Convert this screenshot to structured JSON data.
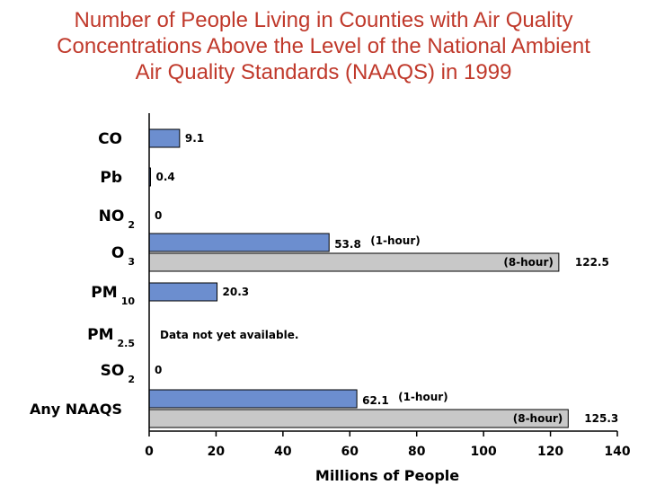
{
  "title_lines": [
    "Number of People Living in Counties with Air Quality",
    "Concentrations Above the Level of the National Ambient",
    "Air Quality Standards (NAAQS) in 1999"
  ],
  "chart_data": {
    "type": "bar",
    "orientation": "horizontal",
    "xlabel": "Millions of People",
    "xlim": [
      0,
      140
    ],
    "xticks": [
      0,
      20,
      40,
      60,
      80,
      100,
      120,
      140
    ],
    "categories": [
      {
        "name": "CO",
        "sub": ""
      },
      {
        "name": "Pb",
        "sub": ""
      },
      {
        "name": "NO",
        "sub": "2"
      },
      {
        "name": "O",
        "sub": "3"
      },
      {
        "name": "PM",
        "sub": "10"
      },
      {
        "name": "PM",
        "sub": "2.5"
      },
      {
        "name": "SO",
        "sub": "2"
      },
      {
        "name": "Any NAAQS",
        "sub": ""
      }
    ],
    "bars": [
      {
        "cat": 0,
        "value": 9.1,
        "label": "9.1",
        "style": "blue",
        "slot": "single"
      },
      {
        "cat": 1,
        "value": 0.4,
        "label": "0.4",
        "style": "blue",
        "slot": "single"
      },
      {
        "cat": 2,
        "value": 0,
        "label": "0",
        "style": "blue",
        "slot": "single"
      },
      {
        "cat": 3,
        "value": 53.8,
        "label": "53.8",
        "note": "(1-hour)",
        "style": "blue",
        "slot": "upper"
      },
      {
        "cat": 3,
        "value": 122.5,
        "label": "122.5",
        "note": "(8-hour)",
        "style": "gray",
        "slot": "lower"
      },
      {
        "cat": 4,
        "value": 20.3,
        "label": "20.3",
        "style": "blue",
        "slot": "single"
      },
      {
        "cat": 6,
        "value": 0,
        "label": "0",
        "style": "blue",
        "slot": "single"
      },
      {
        "cat": 7,
        "value": 62.1,
        "label": "62.1",
        "note": "(1-hour)",
        "style": "blue",
        "slot": "upper"
      },
      {
        "cat": 7,
        "value": 125.3,
        "label": "125.3",
        "note": "(8-hour)",
        "style": "gray",
        "slot": "lower"
      }
    ],
    "annotations": [
      {
        "cat": 5,
        "text": "Data not yet available."
      }
    ],
    "colors": {
      "blue": "#6c8ecf",
      "gray": "#c8c8c8",
      "title": "#c0392b"
    }
  }
}
